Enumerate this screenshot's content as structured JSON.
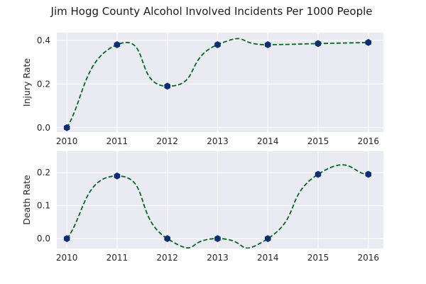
{
  "chart_data": {
    "title": "Jim Hogg County Alcohol Involved Incidents Per 1000 People",
    "style": {
      "plot_background": "#eaeaf2",
      "grid_color": "#ffffff",
      "line_color": "#006b1d",
      "marker_color": "#0b2e75"
    },
    "panels": [
      {
        "type": "line",
        "ylabel": "Injury Rate",
        "x": [
          2010,
          2011,
          2012,
          2013,
          2014,
          2015,
          2016
        ],
        "values": [
          0.0,
          0.38,
          0.19,
          0.38,
          0.38,
          0.385,
          0.39
        ],
        "xlim": [
          2009.8,
          2016.3
        ],
        "ylim": [
          -0.02,
          0.435
        ],
        "yticks": [
          0.0,
          0.2,
          0.4
        ],
        "ytick_labels": [
          "0.0",
          "0.2",
          "0.4"
        ],
        "xtick_labels": [
          "2010",
          "2011",
          "2012",
          "2013",
          "2014",
          "2015",
          "2016"
        ],
        "line_style": "dashed",
        "smoothed": true,
        "grid": true
      },
      {
        "type": "line",
        "ylabel": "Death Rate",
        "x": [
          2010,
          2011,
          2012,
          2013,
          2014,
          2015,
          2016
        ],
        "values": [
          0.0,
          0.19,
          0.0,
          0.0,
          0.0,
          0.195,
          0.195
        ],
        "xlim": [
          2009.8,
          2016.3
        ],
        "ylim": [
          -0.03,
          0.265
        ],
        "yticks": [
          0.0,
          0.1,
          0.2
        ],
        "ytick_labels": [
          "0.0",
          "0.1",
          "0.2"
        ],
        "xtick_labels": [
          "2010",
          "2011",
          "2012",
          "2013",
          "2014",
          "2015",
          "2016"
        ],
        "line_style": "dashed",
        "smoothed": true,
        "grid": true
      }
    ]
  }
}
